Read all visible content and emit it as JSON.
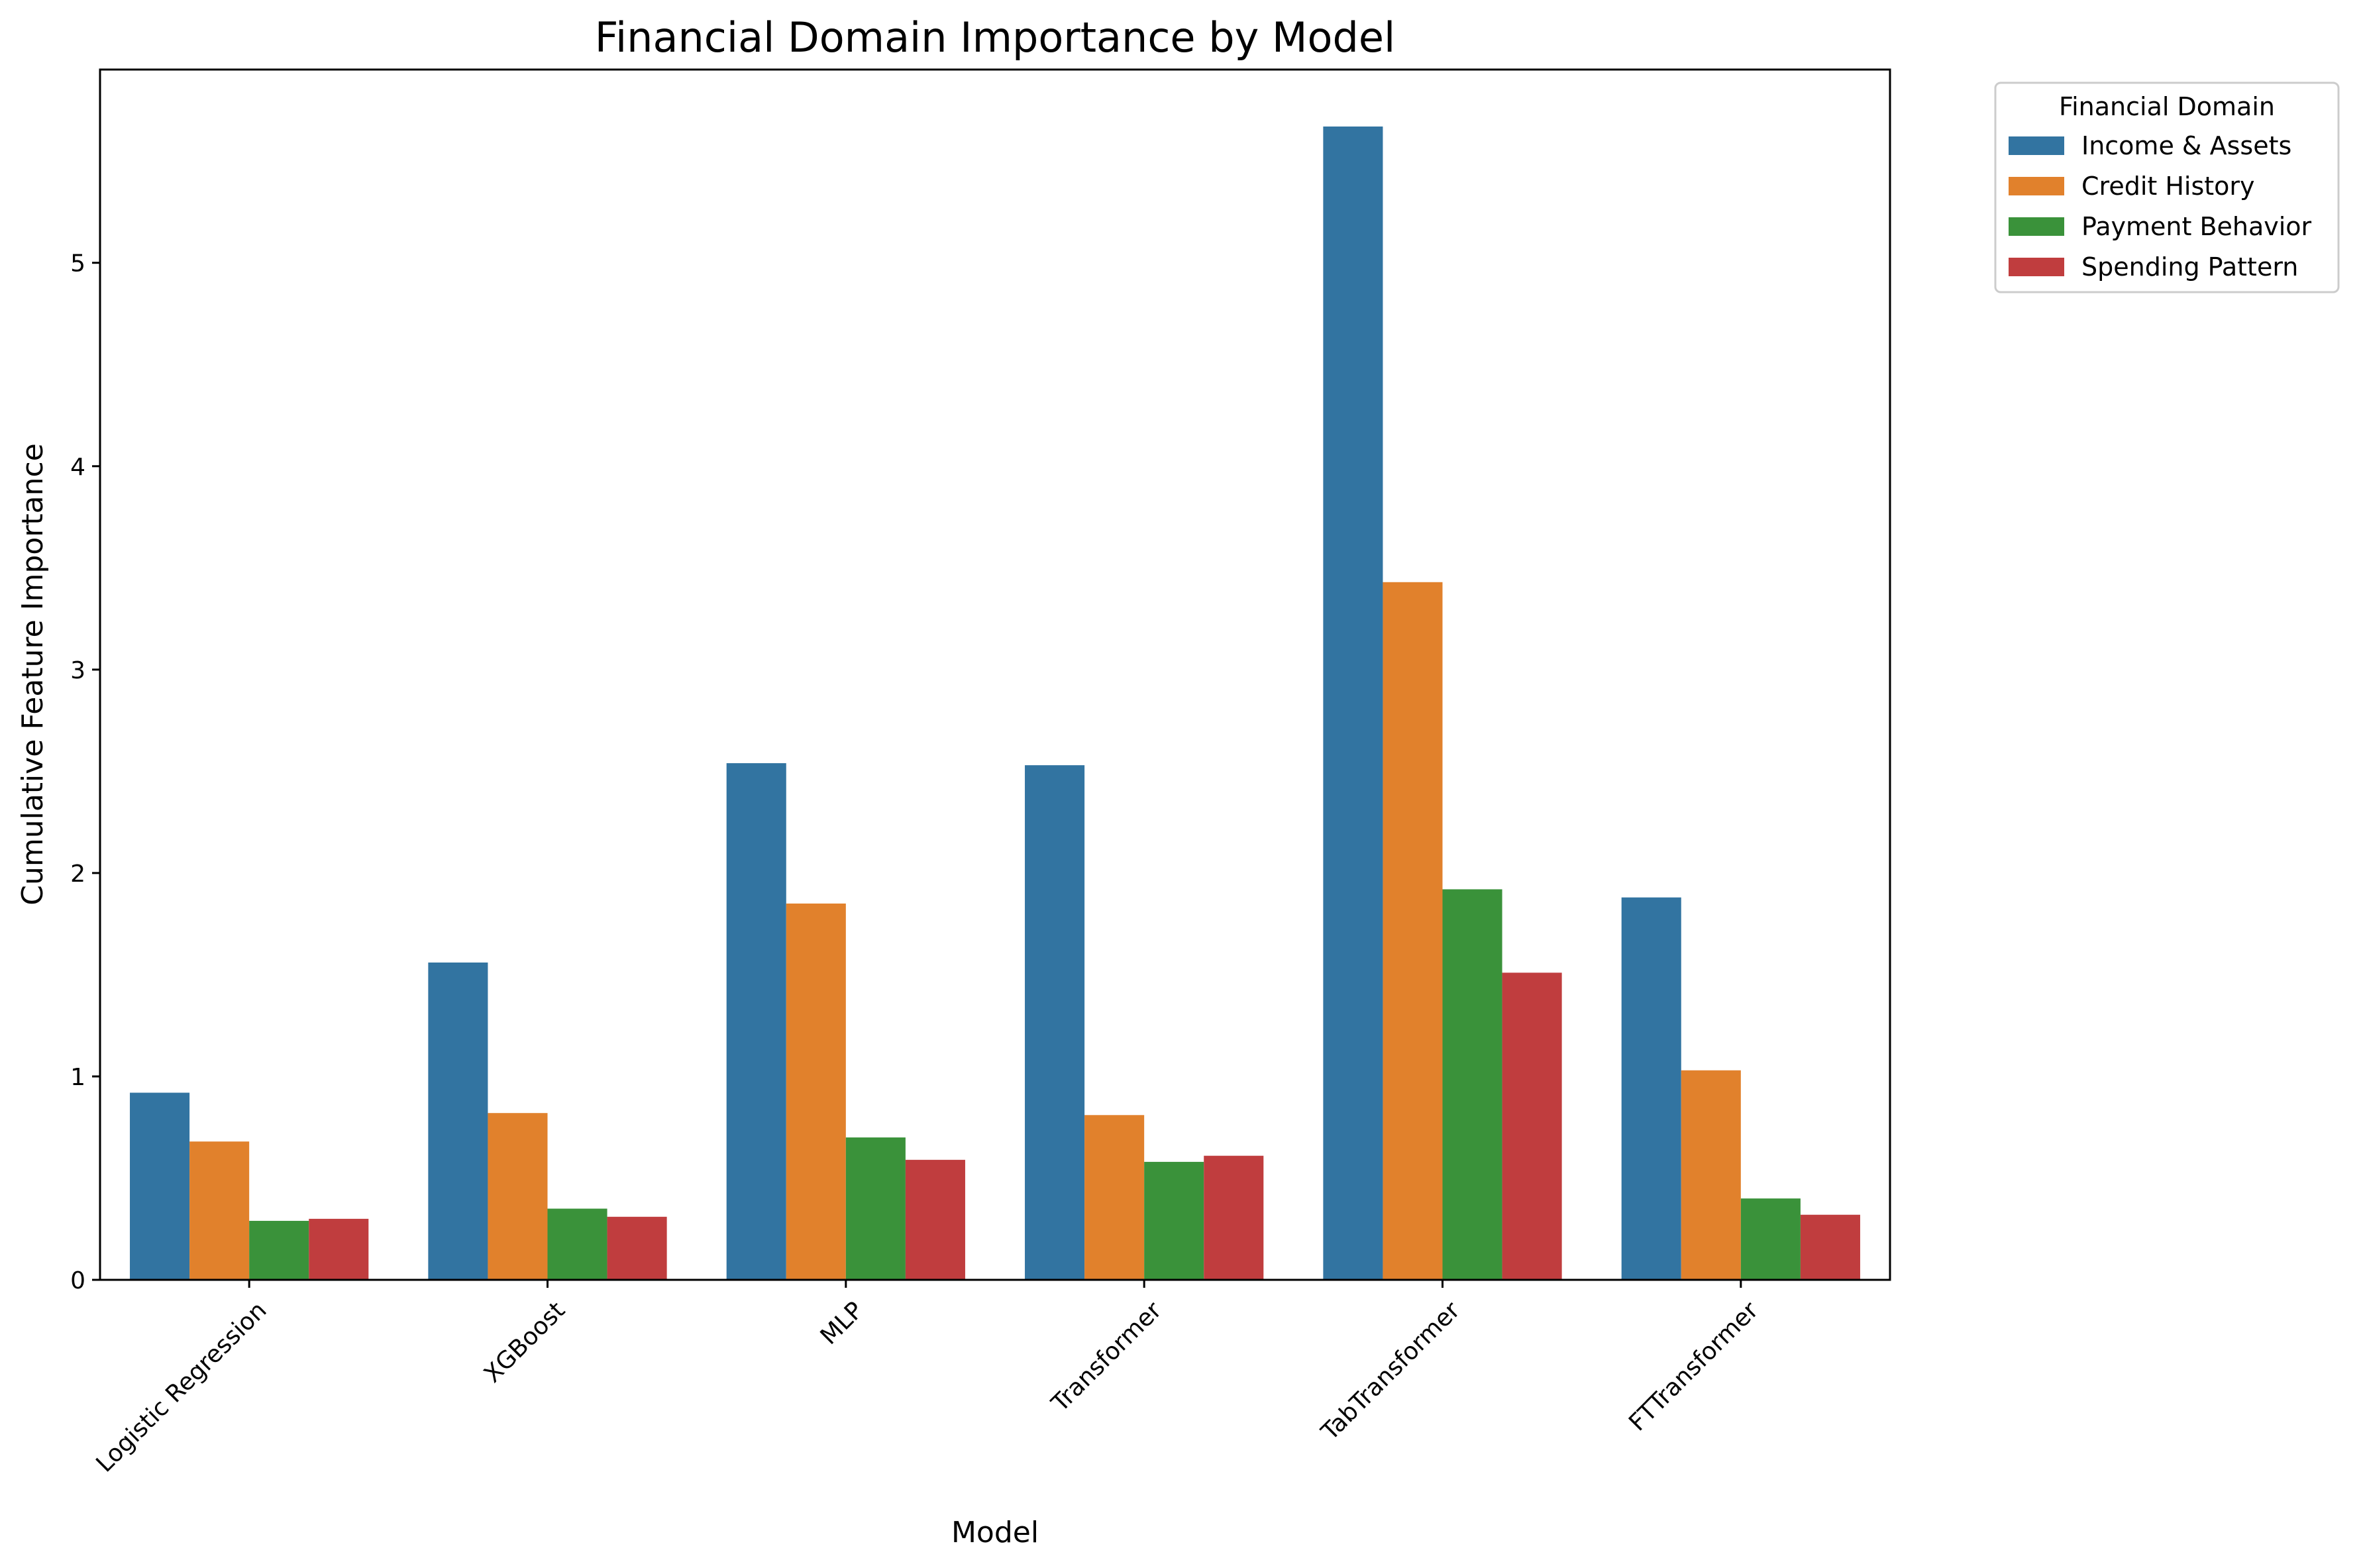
{
  "chart_data": {
    "type": "bar",
    "title": "Financial Domain Importance by Model",
    "xlabel": "Model",
    "ylabel": "Cumulative Feature Importance",
    "categories": [
      "Logistic Regression",
      "XGBoost",
      "MLP",
      "Transformer",
      "TabTransformer",
      "FTTransformer"
    ],
    "series": [
      {
        "name": "Income & Assets",
        "color": "#3274a1",
        "values": [
          0.92,
          1.56,
          2.54,
          2.53,
          5.67,
          1.88
        ]
      },
      {
        "name": "Credit History",
        "color": "#e1812c",
        "values": [
          0.68,
          0.82,
          1.85,
          0.81,
          3.43,
          1.03
        ]
      },
      {
        "name": "Payment Behavior",
        "color": "#3a923a",
        "values": [
          0.29,
          0.35,
          0.7,
          0.58,
          1.92,
          0.4
        ]
      },
      {
        "name": "Spending Pattern",
        "color": "#c03d3e",
        "values": [
          0.3,
          0.31,
          0.59,
          0.61,
          1.51,
          0.32
        ]
      }
    ],
    "yticks": [
      "0",
      "1",
      "2",
      "3",
      "4",
      "5"
    ],
    "ylim": [
      0,
      5.95
    ],
    "grid": false,
    "legend": {
      "title": "Financial Domain",
      "placement": "outside-top-right"
    }
  }
}
